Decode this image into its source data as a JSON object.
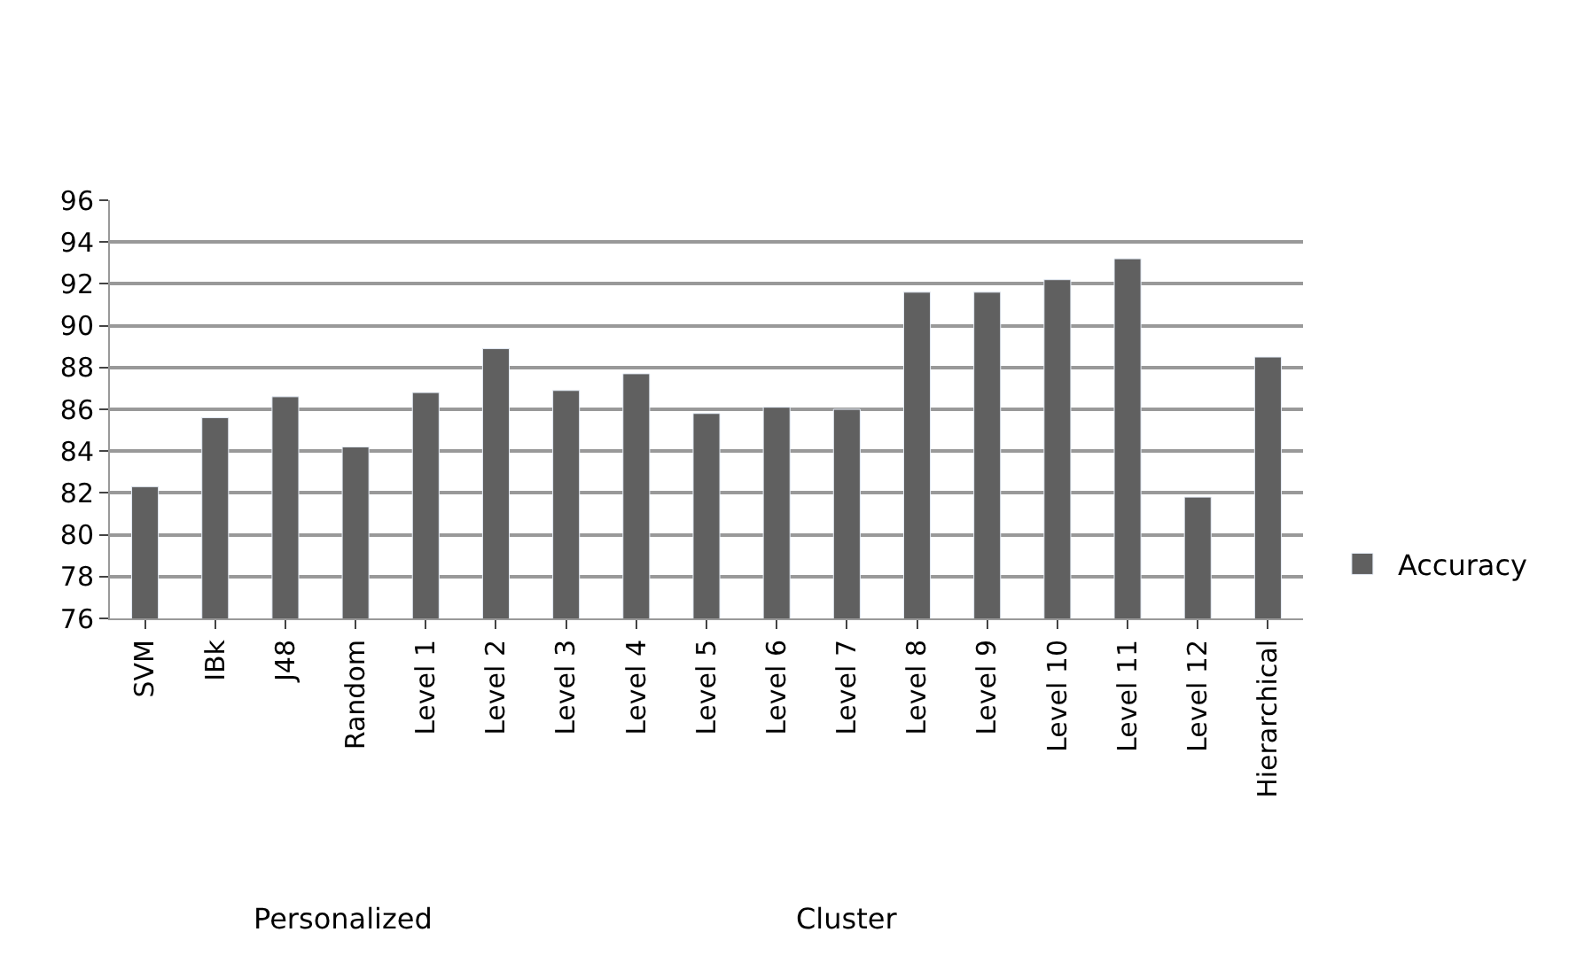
{
  "chart_data": {
    "type": "bar",
    "categories": [
      "SVM",
      "IBk",
      "J48",
      "Random",
      "Level 1",
      "Level 2",
      "Level 3",
      "Level 4",
      "Level 5",
      "Level 6",
      "Level 7",
      "Level 8",
      "Level 9",
      "Level 10",
      "Level 11",
      "Level 12",
      "Hierarchical"
    ],
    "series": [
      {
        "name": "Accuracy",
        "color": "#606060",
        "values": [
          82.3,
          85.6,
          86.6,
          84.2,
          86.8,
          88.9,
          86.9,
          87.7,
          85.8,
          86.1,
          86.0,
          91.6,
          91.6,
          92.2,
          93.2,
          81.8,
          88.5
        ]
      }
    ],
    "ylim": [
      76,
      96
    ],
    "yticks": [
      76,
      78,
      80,
      82,
      84,
      86,
      88,
      90,
      92,
      94,
      96
    ],
    "grid": "y",
    "legend": "right",
    "annotations": [
      "Personalized",
      "Cluster"
    ]
  }
}
